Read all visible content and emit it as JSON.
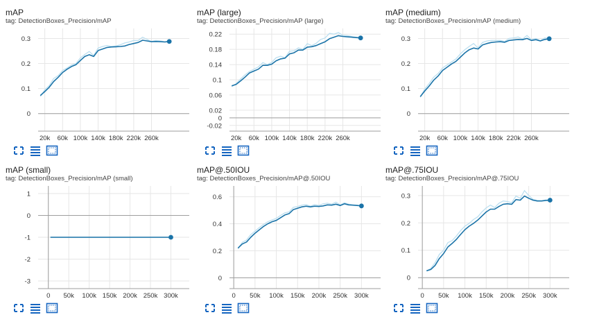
{
  "colors": {
    "line": "#1a73a8",
    "raw": "#bcdff0",
    "grid": "#e6e6e6",
    "axis": "#9e9e9e",
    "icon": "#1565c0"
  },
  "toolbar_icons": [
    "fit-domain-icon",
    "data-table-icon",
    "log-scale-icon"
  ],
  "chart_data": [
    {
      "type": "line",
      "title": "mAP",
      "tag": "tag: DetectionBoxes_Precision/mAP",
      "xlim": [
        5000,
        345000
      ],
      "ylim": [
        -0.07,
        0.34
      ],
      "xticks": [
        20000,
        60000,
        100000,
        140000,
        180000,
        220000,
        260000
      ],
      "xtick_labels": [
        "20k",
        "60k",
        "100k",
        "140k",
        "180k",
        "220k",
        "260k"
      ],
      "yticks": [
        0,
        0.1,
        0.2,
        0.3
      ],
      "ytick_labels": [
        "0",
        "0.1",
        "0.2",
        "0.3"
      ],
      "series": [
        {
          "x": [
            10000,
            20000,
            30000,
            40000,
            50000,
            60000,
            70000,
            80000,
            90000,
            100000,
            110000,
            120000,
            130000,
            140000,
            150000,
            160000,
            170000,
            180000,
            190000,
            200000,
            210000,
            220000,
            230000,
            240000,
            250000,
            260000,
            270000,
            280000,
            290000,
            300000
          ],
          "values": [
            0.072,
            0.088,
            0.105,
            0.128,
            0.145,
            0.164,
            0.177,
            0.188,
            0.195,
            0.212,
            0.228,
            0.235,
            0.228,
            0.252,
            0.258,
            0.264,
            0.266,
            0.267,
            0.268,
            0.27,
            0.276,
            0.28,
            0.284,
            0.293,
            0.29,
            0.287,
            0.288,
            0.287,
            0.286,
            0.288
          ],
          "raw": [
            0.068,
            0.095,
            0.112,
            0.14,
            0.152,
            0.172,
            0.182,
            0.194,
            0.2,
            0.222,
            0.236,
            0.248,
            0.232,
            0.262,
            0.268,
            0.272,
            0.268,
            0.27,
            0.275,
            0.282,
            0.286,
            0.292,
            0.292,
            0.305,
            0.296,
            0.288,
            0.292,
            0.29,
            0.287,
            0.289
          ]
        }
      ]
    },
    {
      "type": "line",
      "title": "mAP (large)",
      "tag": "tag: DetectionBoxes_Precision/mAP (large)",
      "xlim": [
        5000,
        345000
      ],
      "ylim": [
        -0.035,
        0.235
      ],
      "xticks": [
        20000,
        60000,
        100000,
        140000,
        180000,
        220000,
        260000
      ],
      "xtick_labels": [
        "20k",
        "60k",
        "100k",
        "140k",
        "180k",
        "220k",
        "260k"
      ],
      "yticks": [
        -0.02,
        0,
        0.02,
        0.06,
        0.1,
        0.14,
        0.18,
        0.22
      ],
      "ytick_labels": [
        "-0.02",
        "0",
        "0.02",
        "0.06",
        "0.1",
        "0.14",
        "0.18",
        "0.22"
      ],
      "series": [
        {
          "x": [
            10000,
            20000,
            30000,
            40000,
            50000,
            60000,
            70000,
            80000,
            90000,
            100000,
            110000,
            120000,
            130000,
            140000,
            150000,
            160000,
            170000,
            180000,
            190000,
            200000,
            210000,
            220000,
            230000,
            240000,
            250000,
            260000,
            270000,
            280000,
            290000,
            300000
          ],
          "values": [
            0.084,
            0.088,
            0.097,
            0.107,
            0.118,
            0.123,
            0.128,
            0.138,
            0.138,
            0.141,
            0.15,
            0.155,
            0.157,
            0.168,
            0.171,
            0.178,
            0.178,
            0.186,
            0.187,
            0.19,
            0.195,
            0.2,
            0.208,
            0.212,
            0.216,
            0.214,
            0.213,
            0.212,
            0.211,
            0.21
          ],
          "raw": [
            0.082,
            0.09,
            0.102,
            0.113,
            0.122,
            0.128,
            0.134,
            0.145,
            0.14,
            0.146,
            0.158,
            0.162,
            0.158,
            0.175,
            0.176,
            0.184,
            0.18,
            0.195,
            0.19,
            0.196,
            0.206,
            0.21,
            0.222,
            0.22,
            0.224,
            0.217,
            0.216,
            0.214,
            0.212,
            0.211
          ]
        }
      ]
    },
    {
      "type": "line",
      "title": "mAP (medium)",
      "tag": "tag: DetectionBoxes_Precision/mAP (medium)",
      "xlim": [
        5000,
        345000
      ],
      "ylim": [
        -0.07,
        0.34
      ],
      "xticks": [
        20000,
        60000,
        100000,
        140000,
        180000,
        220000,
        260000
      ],
      "xtick_labels": [
        "20k",
        "60k",
        "100k",
        "140k",
        "180k",
        "220k",
        "260k"
      ],
      "yticks": [
        0,
        0.1,
        0.2,
        0.3
      ],
      "ytick_labels": [
        "0",
        "0.1",
        "0.2",
        "0.3"
      ],
      "series": [
        {
          "x": [
            10000,
            20000,
            30000,
            40000,
            50000,
            60000,
            70000,
            80000,
            90000,
            100000,
            110000,
            120000,
            130000,
            140000,
            150000,
            160000,
            170000,
            180000,
            190000,
            200000,
            210000,
            220000,
            230000,
            240000,
            250000,
            260000,
            270000,
            280000,
            290000,
            300000
          ],
          "values": [
            0.068,
            0.09,
            0.11,
            0.133,
            0.15,
            0.172,
            0.185,
            0.198,
            0.208,
            0.225,
            0.242,
            0.255,
            0.262,
            0.258,
            0.274,
            0.28,
            0.284,
            0.286,
            0.287,
            0.285,
            0.292,
            0.294,
            0.296,
            0.295,
            0.3,
            0.292,
            0.295,
            0.29,
            0.296,
            0.299
          ],
          "raw": [
            0.065,
            0.098,
            0.12,
            0.145,
            0.16,
            0.182,
            0.194,
            0.206,
            0.218,
            0.238,
            0.255,
            0.268,
            0.28,
            0.262,
            0.284,
            0.29,
            0.292,
            0.292,
            0.292,
            0.288,
            0.3,
            0.302,
            0.306,
            0.298,
            0.312,
            0.295,
            0.3,
            0.291,
            0.302,
            0.3
          ]
        }
      ]
    },
    {
      "type": "line",
      "title": "mAP (small)",
      "tag": "tag: DetectionBoxes_Precision/mAP (small)",
      "xlim": [
        -25000,
        345000
      ],
      "ylim": [
        -3.35,
        1.35
      ],
      "xticks": [
        0,
        50000,
        100000,
        150000,
        200000,
        250000,
        300000
      ],
      "xtick_labels": [
        "0",
        "50k",
        "100k",
        "150k",
        "200k",
        "250k",
        "300k"
      ],
      "yticks": [
        -3,
        -2,
        -1,
        0,
        1
      ],
      "ytick_labels": [
        "-3",
        "-2",
        "-1",
        "0",
        "1"
      ],
      "series": [
        {
          "x": [
            5000,
            300000
          ],
          "values": [
            -1,
            -1
          ],
          "raw": [
            -1,
            -1
          ]
        }
      ]
    },
    {
      "type": "line",
      "title": "mAP@.50IOU",
      "tag": "tag: DetectionBoxes_Precision/mAP@.50IOU",
      "xlim": [
        -10000,
        345000
      ],
      "ylim": [
        -0.08,
        0.68
      ],
      "xticks": [
        0,
        50000,
        100000,
        150000,
        200000,
        250000,
        300000
      ],
      "xtick_labels": [
        "0",
        "50k",
        "100k",
        "150k",
        "200k",
        "250k",
        "300k"
      ],
      "yticks": [
        0,
        0.2,
        0.4,
        0.6
      ],
      "ytick_labels": [
        "0",
        "0.2",
        "0.4",
        "0.6"
      ],
      "series": [
        {
          "x": [
            10000,
            20000,
            30000,
            40000,
            50000,
            60000,
            70000,
            80000,
            90000,
            100000,
            110000,
            120000,
            130000,
            140000,
            150000,
            160000,
            170000,
            180000,
            190000,
            200000,
            210000,
            220000,
            230000,
            240000,
            250000,
            260000,
            270000,
            280000,
            290000,
            300000
          ],
          "values": [
            0.22,
            0.25,
            0.265,
            0.3,
            0.33,
            0.355,
            0.38,
            0.4,
            0.415,
            0.425,
            0.445,
            0.465,
            0.475,
            0.505,
            0.515,
            0.525,
            0.53,
            0.525,
            0.53,
            0.528,
            0.532,
            0.54,
            0.538,
            0.545,
            0.535,
            0.548,
            0.54,
            0.538,
            0.535,
            0.532
          ],
          "raw": [
            0.215,
            0.262,
            0.28,
            0.32,
            0.345,
            0.372,
            0.395,
            0.415,
            0.428,
            0.44,
            0.462,
            0.48,
            0.488,
            0.522,
            0.528,
            0.538,
            0.542,
            0.53,
            0.542,
            0.535,
            0.548,
            0.552,
            0.545,
            0.56,
            0.54,
            0.555,
            0.545,
            0.54,
            0.538,
            0.533
          ]
        }
      ]
    },
    {
      "type": "line",
      "title": "mAP@.75IOU",
      "tag": "tag: DetectionBoxes_Precision/mAP@.75IOU",
      "xlim": [
        -10000,
        345000
      ],
      "ylim": [
        -0.04,
        0.335
      ],
      "xticks": [
        0,
        50000,
        100000,
        150000,
        200000,
        250000,
        300000
      ],
      "xtick_labels": [
        "0",
        "50k",
        "100k",
        "150k",
        "200k",
        "250k",
        "300k"
      ],
      "yticks": [
        0,
        0.1,
        0.2,
        0.3
      ],
      "ytick_labels": [
        "0",
        "0.1",
        "0.2",
        "0.3"
      ],
      "series": [
        {
          "x": [
            10000,
            20000,
            30000,
            40000,
            50000,
            60000,
            70000,
            80000,
            90000,
            100000,
            110000,
            120000,
            130000,
            140000,
            150000,
            160000,
            170000,
            180000,
            190000,
            200000,
            210000,
            220000,
            230000,
            240000,
            250000,
            260000,
            270000,
            280000,
            290000,
            300000
          ],
          "values": [
            0.025,
            0.03,
            0.045,
            0.07,
            0.088,
            0.112,
            0.125,
            0.14,
            0.158,
            0.175,
            0.188,
            0.198,
            0.21,
            0.225,
            0.24,
            0.25,
            0.25,
            0.26,
            0.268,
            0.27,
            0.268,
            0.285,
            0.283,
            0.298,
            0.29,
            0.283,
            0.28,
            0.28,
            0.282,
            0.283
          ],
          "raw": [
            0.024,
            0.034,
            0.055,
            0.085,
            0.1,
            0.128,
            0.135,
            0.152,
            0.172,
            0.188,
            0.198,
            0.212,
            0.222,
            0.24,
            0.255,
            0.265,
            0.256,
            0.272,
            0.28,
            0.278,
            0.274,
            0.298,
            0.29,
            0.318,
            0.3,
            0.286,
            0.282,
            0.281,
            0.284,
            0.284
          ]
        }
      ]
    }
  ]
}
